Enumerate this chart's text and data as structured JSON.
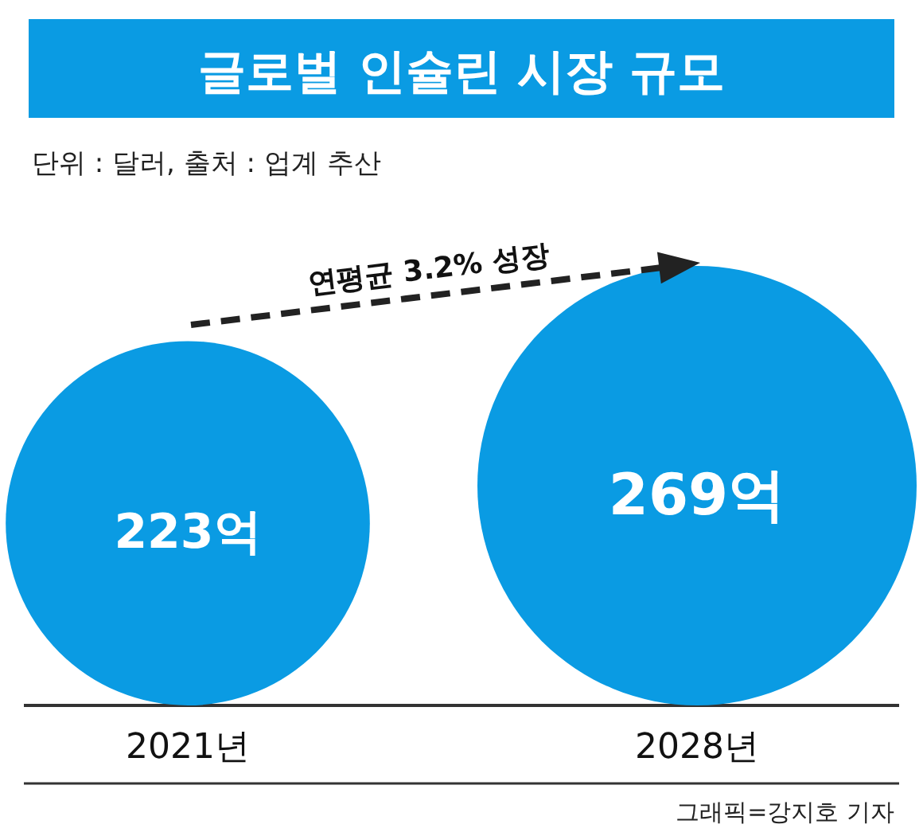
{
  "chart_data": {
    "type": "other",
    "title": "글로벌 인슐린 시장 규모",
    "subtitle": "단위 : 달러, 출처 : 업계 추산",
    "categories": [
      "2021년",
      "2028년"
    ],
    "values": [
      223,
      269
    ],
    "value_labels": [
      "223억",
      "269억"
    ],
    "color": "#0a9be3",
    "annotations": [
      "연평균 3.2% 성장",
      "그래픽=강지호 기자"
    ]
  }
}
